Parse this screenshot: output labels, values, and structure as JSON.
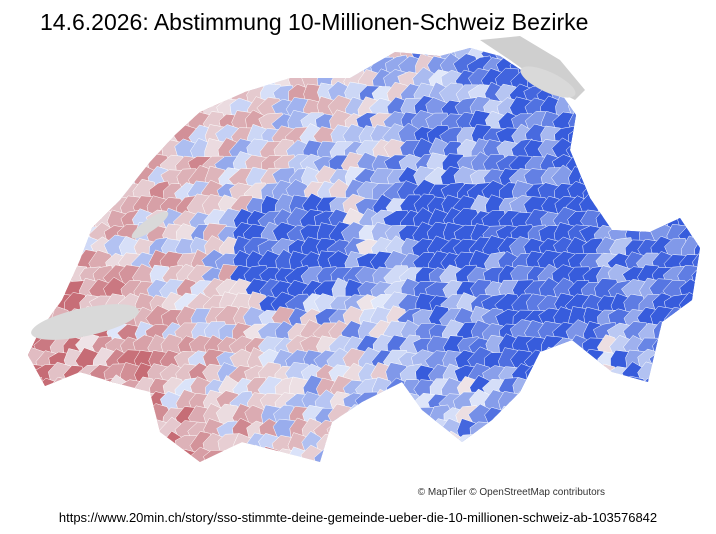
{
  "title": "14.6.2026: Abstimmung 10-Millionen-Schweiz Bezirke",
  "attribution": "© MapTiler © OpenStreetMap contributors",
  "source_url": "https://www.20min.ch/story/sso-stimmte-deine-gemeinde-ueber-die-10-millionen-schweiz-ab-103576842"
}
